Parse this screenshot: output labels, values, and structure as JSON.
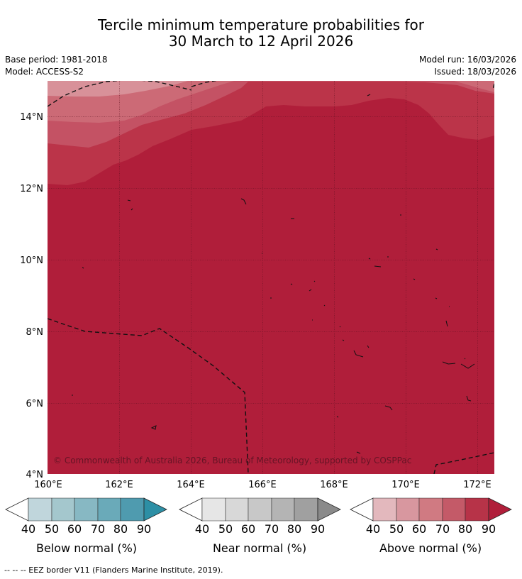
{
  "header": {
    "title_line1": "Tercile minimum temperature probabilities for",
    "title_line2": "30 March to 12 April 2026",
    "base_period": "Base period: 1981-2018",
    "model": "Model: ACCESS-S2",
    "model_run": "Model run: 16/03/2026",
    "issued": "Issued: 18/03/2026"
  },
  "map": {
    "lat_labels": [
      "14°N",
      "12°N",
      "10°N",
      "8°N",
      "6°N",
      "4°N"
    ],
    "lon_labels": [
      "160°E",
      "162°E",
      "164°E",
      "166°E",
      "168°E",
      "170°E",
      "172°E"
    ],
    "copyright": "© Commonwealth of Australia 2026, Bureau of Meteorology, supported by COSPPac",
    "dominant_category": "Above normal",
    "dominant_probability_range": "80-90"
  },
  "legends": [
    {
      "title": "Below normal (%)",
      "ticks": [
        "40",
        "50",
        "60",
        "70",
        "80",
        "90"
      ],
      "colors": [
        "#c0d6dc",
        "#a4c7cd",
        "#87b8c3",
        "#6aaab9",
        "#4f9baf",
        "#2d8fa5"
      ]
    },
    {
      "title": "Near normal (%)",
      "ticks": [
        "40",
        "50",
        "60",
        "70",
        "80",
        "90"
      ],
      "colors": [
        "#e6e6e6",
        "#d8d8d8",
        "#c8c8c8",
        "#b4b4b4",
        "#a0a0a0",
        "#8a8a8a"
      ]
    },
    {
      "title": "Above normal (%)",
      "ticks": [
        "40",
        "50",
        "60",
        "70",
        "80",
        "90"
      ],
      "colors": [
        "#e3b8bd",
        "#d8979f",
        "#d07a82",
        "#c45a68",
        "#b73348",
        "#b01e3a"
      ]
    }
  ],
  "footer": {
    "eez_note": "--  --  -- EEZ border V11 (Flanders Marine Institute, 2019)."
  },
  "colors": {
    "above_80_90": "#b01e3a",
    "above_70_80": "#bb3449",
    "above_60_70": "#c45264",
    "above_50_60": "#cc6a76",
    "above_40_50": "#d89199"
  }
}
